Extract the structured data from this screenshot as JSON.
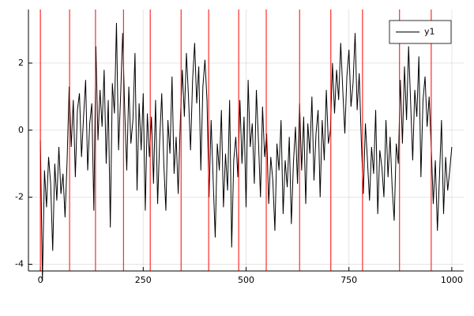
{
  "chart_data": {
    "type": "line",
    "x": [
      0,
      5,
      10,
      15,
      20,
      25,
      30,
      35,
      40,
      45,
      50,
      55,
      60,
      65,
      70,
      75,
      80,
      85,
      90,
      95,
      100,
      105,
      110,
      115,
      120,
      125,
      130,
      135,
      140,
      145,
      150,
      155,
      160,
      165,
      170,
      175,
      180,
      185,
      190,
      195,
      200,
      205,
      210,
      215,
      220,
      225,
      230,
      235,
      240,
      245,
      250,
      255,
      260,
      265,
      270,
      275,
      280,
      285,
      290,
      295,
      300,
      305,
      310,
      315,
      320,
      325,
      330,
      335,
      340,
      345,
      350,
      355,
      360,
      365,
      370,
      375,
      380,
      385,
      390,
      395,
      400,
      405,
      410,
      415,
      420,
      425,
      430,
      435,
      440,
      445,
      450,
      455,
      460,
      465,
      470,
      475,
      480,
      485,
      490,
      495,
      500,
      505,
      510,
      515,
      520,
      525,
      530,
      535,
      540,
      545,
      550,
      555,
      560,
      565,
      570,
      575,
      580,
      585,
      590,
      595,
      600,
      605,
      610,
      615,
      620,
      625,
      630,
      635,
      640,
      645,
      650,
      655,
      660,
      665,
      670,
      675,
      680,
      685,
      690,
      695,
      700,
      705,
      710,
      715,
      720,
      725,
      730,
      735,
      740,
      745,
      750,
      755,
      760,
      765,
      770,
      775,
      780,
      785,
      790,
      795,
      800,
      805,
      810,
      815,
      820,
      825,
      830,
      835,
      840,
      845,
      850,
      855,
      860,
      865,
      870,
      875,
      880,
      885,
      890,
      895,
      900,
      905,
      910,
      915,
      920,
      925,
      930,
      935,
      940,
      945,
      950,
      955,
      960,
      965,
      970,
      975,
      980,
      985,
      990,
      995,
      1000
    ],
    "series": [
      {
        "name": "y1",
        "color": "#000000",
        "values": [
          -0.3,
          -4.5,
          -1.2,
          -2.3,
          -0.8,
          -1.6,
          -3.6,
          -1.0,
          -2.1,
          -0.5,
          -1.9,
          -1.3,
          -2.6,
          -0.9,
          1.3,
          -0.5,
          0.9,
          -1.4,
          0.6,
          1.1,
          -0.8,
          0.4,
          1.5,
          -1.2,
          0.2,
          0.8,
          -2.4,
          2.5,
          -0.3,
          1.2,
          0.1,
          1.8,
          -1.0,
          0.9,
          -2.9,
          1.4,
          0.5,
          3.2,
          -0.6,
          1.0,
          2.9,
          0.6,
          -1.2,
          1.3,
          -0.4,
          0.3,
          2.3,
          -1.8,
          0.8,
          -0.6,
          1.1,
          -2.4,
          0.5,
          -0.8,
          0.4,
          -1.6,
          0.9,
          -2.2,
          -0.3,
          1.1,
          -1.0,
          -2.4,
          0.3,
          -0.7,
          1.6,
          -1.3,
          -0.2,
          -1.9,
          0.2,
          1.8,
          0.4,
          2.3,
          1.0,
          -0.6,
          1.5,
          2.6,
          0.8,
          1.9,
          -1.2,
          1.3,
          2.1,
          0.9,
          -2.0,
          0.3,
          -1.5,
          -3.2,
          -0.4,
          -1.2,
          0.6,
          -2.3,
          -0.7,
          -1.8,
          0.9,
          -3.5,
          -0.9,
          -0.2,
          -1.4,
          0.9,
          -1.0,
          0.4,
          -2.3,
          1.5,
          -0.5,
          0.2,
          -1.6,
          1.2,
          -0.3,
          -2.0,
          0.7,
          -0.8,
          -0.1,
          -2.2,
          -0.8,
          -1.5,
          -3.0,
          -0.4,
          -1.2,
          0.3,
          -2.5,
          -0.9,
          -1.7,
          -0.2,
          -2.8,
          -1.0,
          0.1,
          -1.6,
          0.8,
          -1.2,
          0.4,
          -2.2,
          0.2,
          -0.7,
          1.0,
          -1.5,
          -0.1,
          0.6,
          -2.0,
          0.3,
          -0.9,
          1.2,
          -0.4,
          0.0,
          2.0,
          0.5,
          1.8,
          0.9,
          2.6,
          1.2,
          -0.1,
          1.6,
          2.4,
          0.7,
          1.4,
          2.9,
          0.6,
          1.7,
          -0.3,
          -1.9,
          0.2,
          -0.9,
          -2.1,
          -0.5,
          -1.3,
          0.6,
          -2.5,
          -0.6,
          -1.1,
          -2.0,
          0.3,
          -1.4,
          -0.2,
          -1.7,
          -2.7,
          -0.4,
          -1.0,
          1.5,
          -0.4,
          1.9,
          0.3,
          2.5,
          0.8,
          -0.9,
          1.2,
          0.4,
          2.2,
          -1.4,
          0.9,
          1.6,
          0.1,
          1.0,
          -0.5,
          -2.2,
          -0.9,
          -3.0,
          -1.4,
          0.3,
          -2.5,
          -0.8,
          -1.8,
          -1.2,
          -0.5
        ]
      }
    ],
    "vlines": {
      "color": "#ff0000",
      "values": [
        0,
        71,
        134,
        202,
        267,
        342,
        409,
        482,
        549,
        630,
        706,
        783,
        873,
        950
      ]
    },
    "xlim": [
      -29,
      1029
    ],
    "ylim": [
      -4.2,
      3.6
    ],
    "xticks": [
      0,
      250,
      500,
      750,
      1000
    ],
    "yticks": [
      -4,
      -2,
      0,
      2
    ],
    "grid": true,
    "legend": "top-right"
  }
}
